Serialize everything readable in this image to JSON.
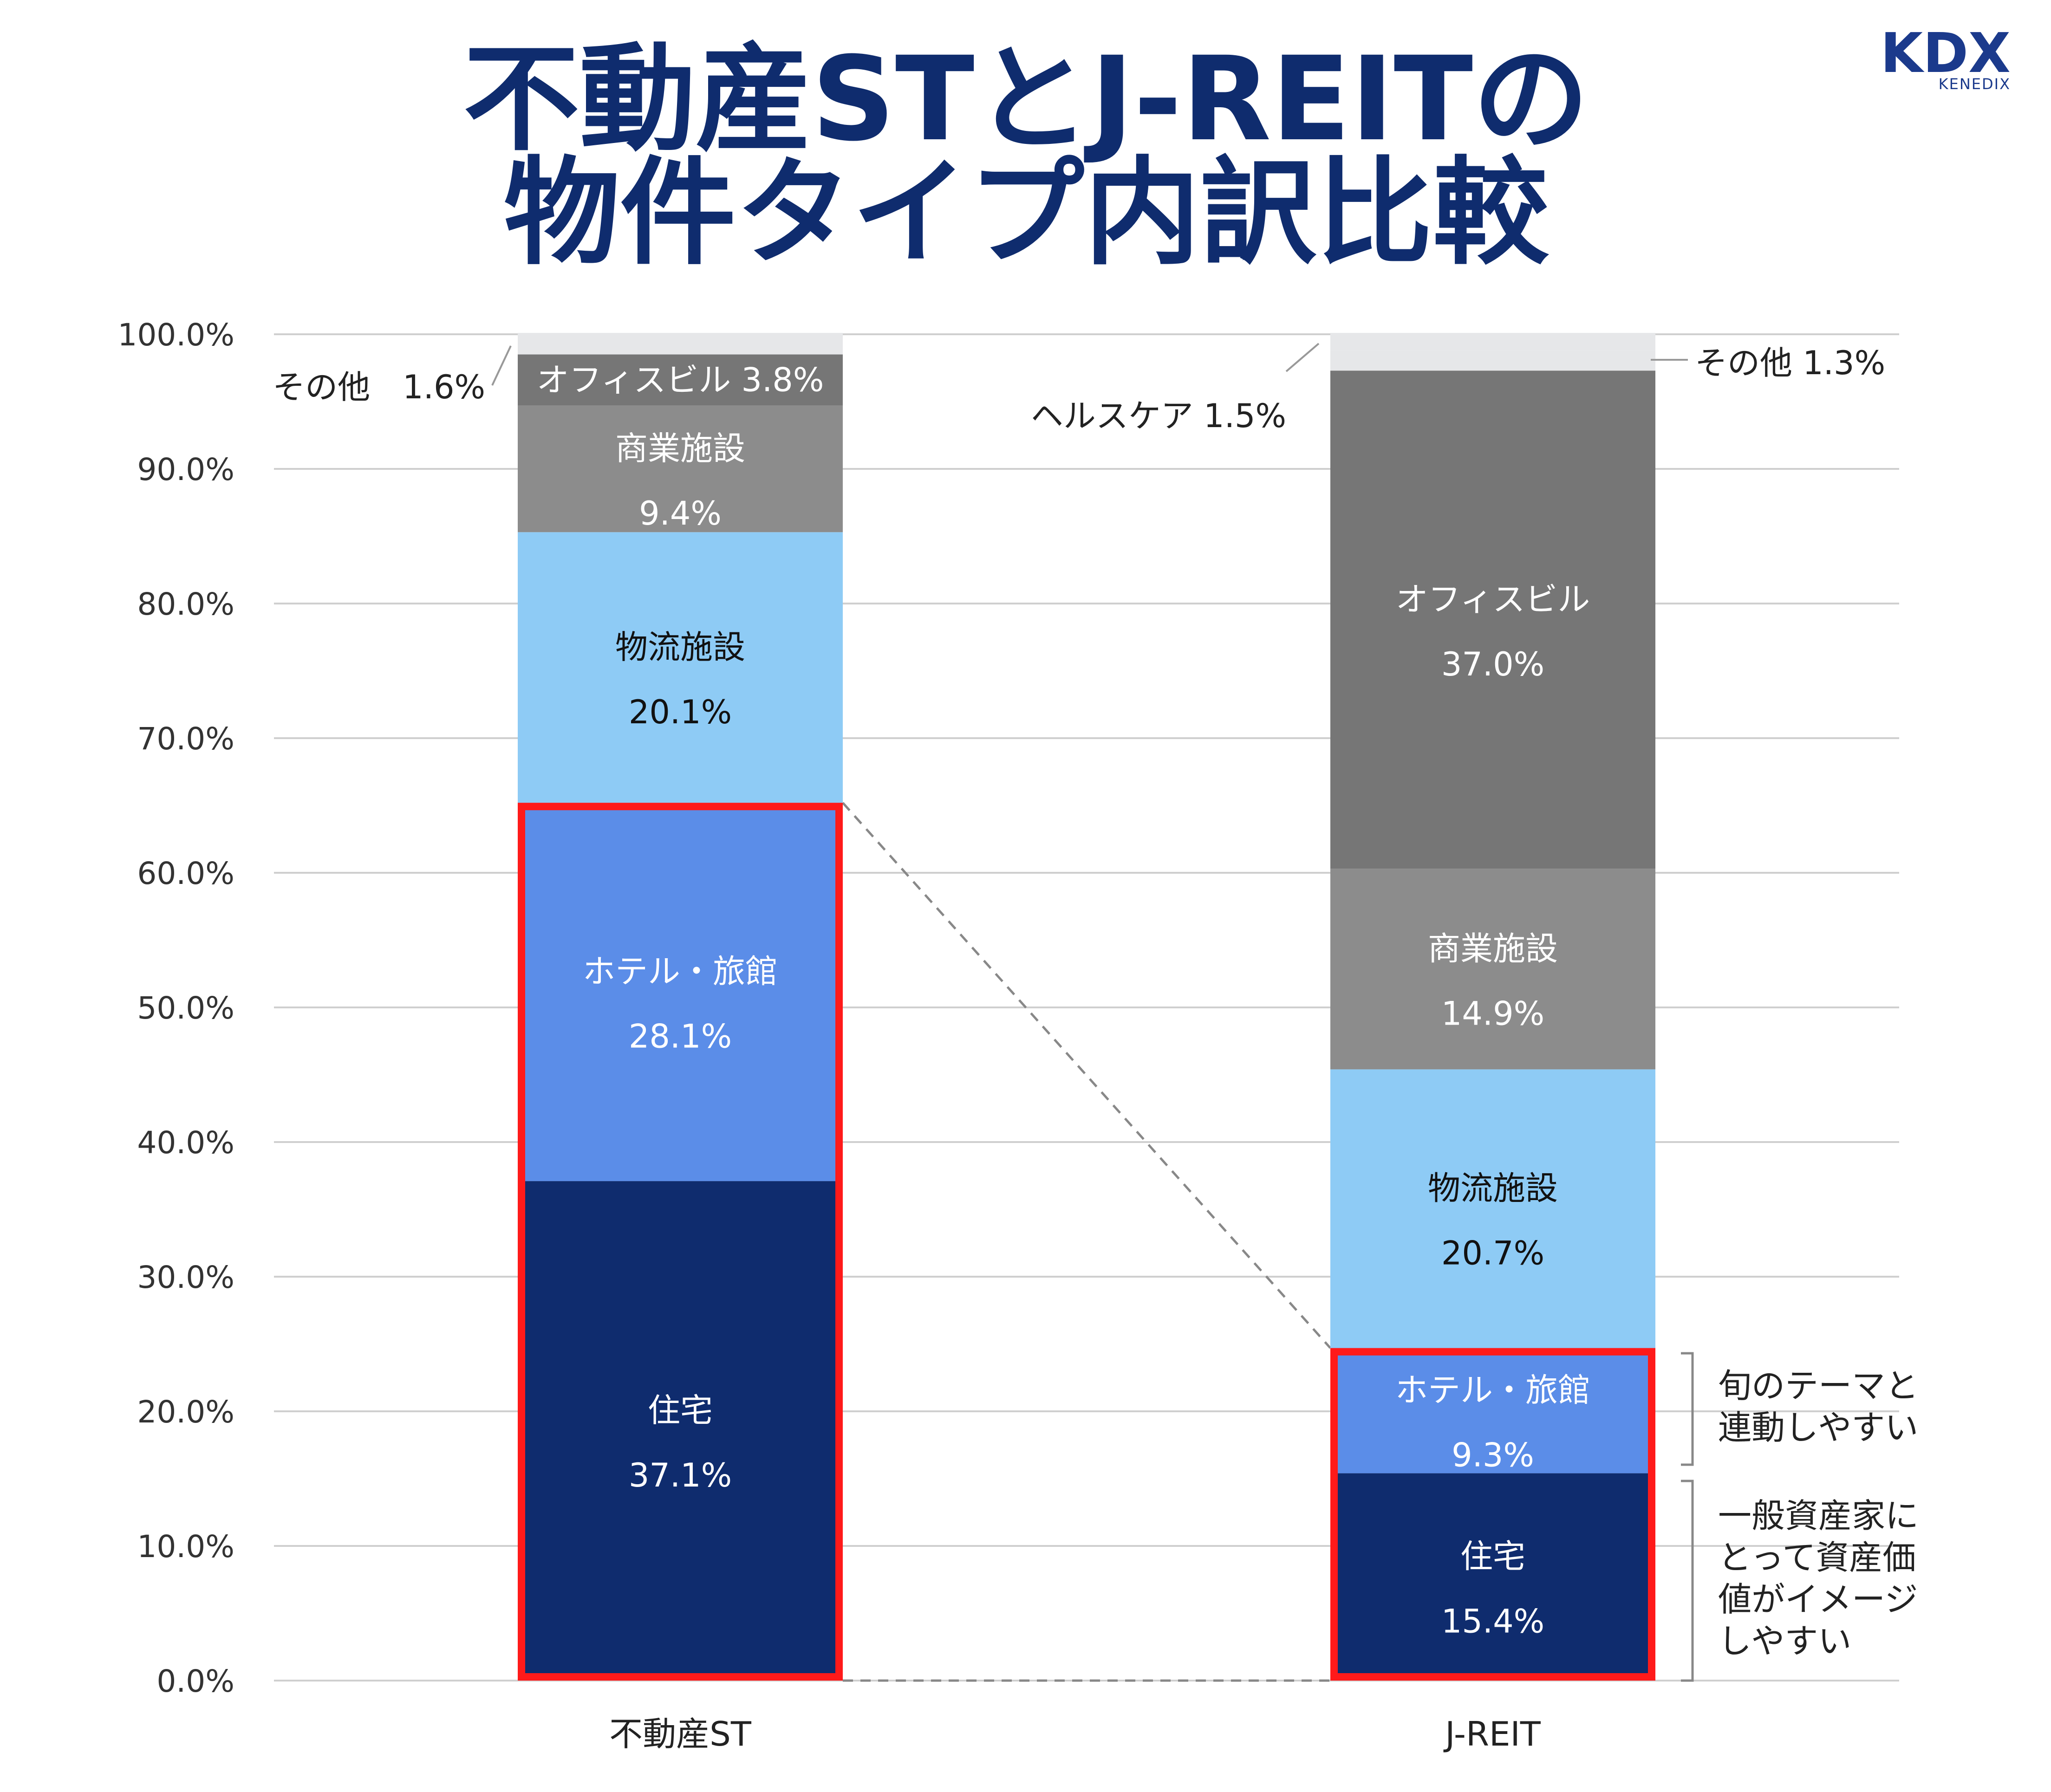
{
  "title": {
    "line1": "不動産STとJ-REITの",
    "line2": "物件タイプ内訳比較"
  },
  "logo": {
    "main": "KDX",
    "sub": "KENEDIX"
  },
  "chart_data": {
    "type": "bar",
    "stacked": true,
    "orientation": "vertical",
    "categories": [
      "不動産ST",
      "J-REIT"
    ],
    "ylim": [
      0,
      100
    ],
    "yticks": [
      "0.0%",
      "10.0%",
      "20.0%",
      "30.0%",
      "40.0%",
      "50.0%",
      "60.0%",
      "70.0%",
      "80.0%",
      "90.0%",
      "100.0%"
    ],
    "grid": true,
    "legend": "none",
    "series": [
      {
        "name": "住宅",
        "color": "#0f2c6e",
        "values": [
          37.1,
          15.4
        ],
        "labels": [
          "37.1%",
          "15.4%"
        ]
      },
      {
        "name": "ホテル・旅館",
        "color": "#5b8de8",
        "values": [
          28.1,
          9.3
        ],
        "labels": [
          "28.1%",
          "9.3%"
        ]
      },
      {
        "name": "物流施設",
        "color": "#8ecbf5",
        "values": [
          20.1,
          20.7
        ],
        "labels": [
          "20.1%",
          "20.7%"
        ]
      },
      {
        "name": "商業施設",
        "color": "#8c8c8c",
        "values": [
          9.4,
          14.9
        ],
        "labels": [
          "9.4%",
          "14.9%"
        ]
      },
      {
        "name": "オフィスビル",
        "color": "#767676",
        "values": [
          3.8,
          37.0
        ],
        "labels": [
          "3.8%",
          "37.0%"
        ]
      },
      {
        "name": "ヘルスケア",
        "color": "#e6e7e9",
        "values": [
          0,
          1.5
        ],
        "labels": [
          "",
          "1.5%"
        ]
      },
      {
        "name": "その他",
        "color": "#e6e7e9",
        "values": [
          1.6,
          1.3
        ],
        "labels": [
          "1.6%",
          "1.3%"
        ]
      }
    ],
    "highlight_color": "#ff1a1a",
    "external_labels": {
      "st_other": "その他　1.6%",
      "st_office": "オフィスビル 3.8%",
      "jreit_healthcare": "ヘルスケア 1.5%",
      "jreit_other": "その他 1.3%"
    },
    "annotations": [
      {
        "lines": [
          "旬のテーマと",
          "連動しやすい"
        ]
      },
      {
        "lines": [
          "一般資産家に",
          "とって資産価",
          "値がイメージ",
          "しやすい"
        ]
      }
    ]
  }
}
